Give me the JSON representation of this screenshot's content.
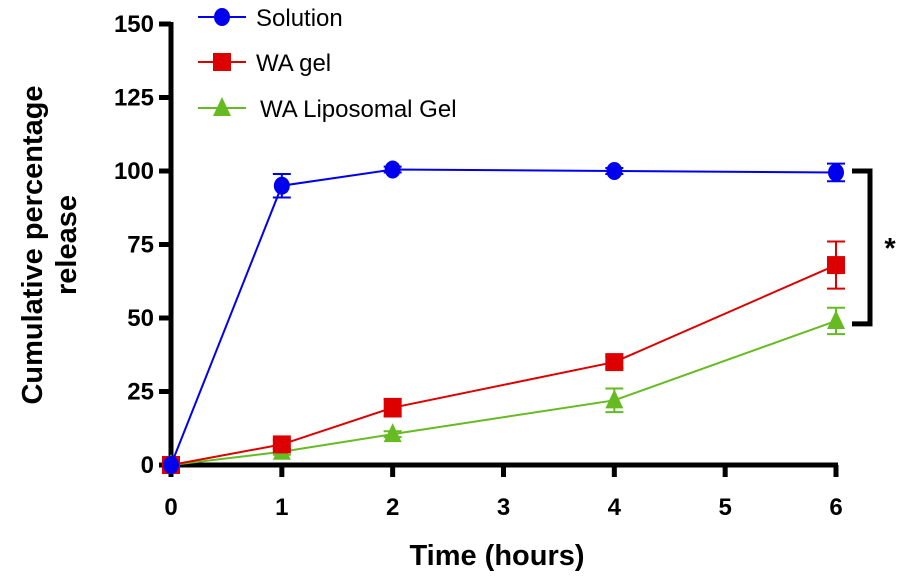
{
  "chart_data": {
    "type": "line",
    "xlabel": "Time (hours)",
    "ylabel": [
      "Cumulative percentage",
      "release"
    ],
    "xlim": [
      0,
      6
    ],
    "ylim": [
      0,
      150
    ],
    "xticks": [
      0,
      1,
      2,
      3,
      4,
      5,
      6
    ],
    "yticks": [
      0,
      25,
      50,
      75,
      100,
      125,
      150
    ],
    "grid": false,
    "legend_position": "top-left",
    "x": [
      0,
      1,
      2,
      4,
      6
    ],
    "series": [
      {
        "name": "Solution",
        "color": "#0000ee",
        "marker": "circle",
        "values": [
          0,
          95,
          100.5,
          100,
          99.5
        ],
        "errors": [
          0,
          4,
          1,
          1,
          3
        ]
      },
      {
        "name": "WA gel",
        "color": "#dd0000",
        "marker": "square",
        "values": [
          0,
          7,
          19.5,
          35,
          68
        ],
        "errors": [
          0,
          1.5,
          3,
          2,
          8
        ]
      },
      {
        "name": "WA Liposomal Gel",
        "color": "#66bb22",
        "marker": "triangle",
        "values": [
          0,
          4.5,
          10.5,
          22,
          49
        ],
        "errors": [
          0,
          1,
          1,
          4,
          4.5
        ]
      }
    ],
    "annotations": [
      {
        "text": "*",
        "type": "significance-bracket",
        "between": [
          "Solution",
          "WA Liposomal Gel"
        ],
        "at_x": 6
      }
    ]
  }
}
